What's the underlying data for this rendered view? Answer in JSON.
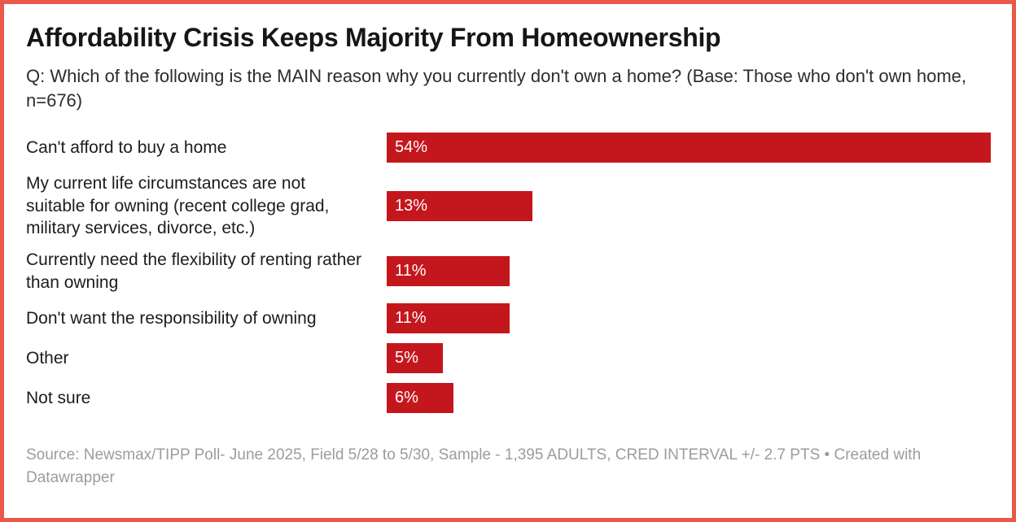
{
  "header": {
    "title": "Affordability Crisis Keeps Majority From Homeownership",
    "subtitle": "Q: Which of the following is the MAIN reason why you currently don't own a home? (Base: Those who don't own home, n=676)"
  },
  "chart_data": {
    "type": "bar",
    "orientation": "horizontal",
    "title": "Affordability Crisis Keeps Majority From Homeownership",
    "subtitle": "Q: Which of the following is the MAIN reason why you currently don't own a home? (Base: Those who don't own home, n=676)",
    "categories": [
      "Can't afford to buy a home",
      "My current life circumstances are not suitable for owning (recent college grad, military services, divorce, etc.)",
      "Currently need the flexibility of renting rather than owning",
      "Don't want the responsibility of owning",
      "Other",
      "Not sure"
    ],
    "values": [
      54,
      13,
      11,
      11,
      5,
      6
    ],
    "value_labels": [
      "54%",
      "13%",
      "11%",
      "11%",
      "5%",
      "6%"
    ],
    "xlim": [
      0,
      54
    ],
    "grid": false,
    "legend": "none",
    "value_label_position": "inside-left"
  },
  "footer": {
    "source_text": "Source: Newsmax/TIPP Poll- June 2025, Field 5/28 to 5/30, Sample - 1,395 ADULTS, CRED INTERVAL +/- 2.7 PTS",
    "separator": "•",
    "credit_text": "Created with Datawrapper"
  },
  "colors": {
    "border": "#e8594b",
    "bar": "#c4171d",
    "bar_label": "#ffffff",
    "title": "#161616",
    "subtitle": "#2c2c2c",
    "label": "#1c1c1c",
    "source": "#9c9c9c",
    "background": "#ffffff"
  }
}
